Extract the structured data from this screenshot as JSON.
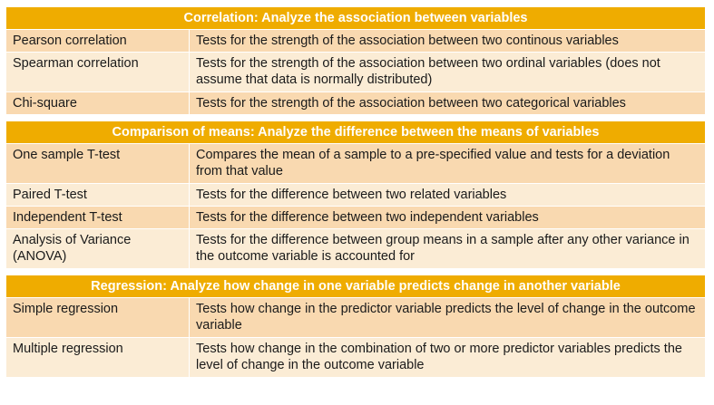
{
  "sections": [
    {
      "title": "Correlation: Analyze the association between variables",
      "rows": [
        {
          "test": "Pearson correlation",
          "description": "Tests for the strength of the association between two continous variables"
        },
        {
          "test": "Spearman correlation",
          "description": "Tests for the strength of the association between two ordinal variables (does not assume that data is normally distributed)"
        },
        {
          "test": "Chi-square",
          "description": "Tests for the strength of the association between two categorical variables"
        }
      ]
    },
    {
      "title": "Comparison of means: Analyze the difference between the means of variables",
      "rows": [
        {
          "test": "One sample T-test",
          "description": "Compares the mean of a sample to a pre-specified value and tests for a deviation from that value"
        },
        {
          "test": "Paired T-test",
          "description": "Tests for the difference between two related variables"
        },
        {
          "test": "Independent T-test",
          "description": "Tests for the difference between two independent variables"
        },
        {
          "test": "Analysis of Variance (ANOVA)",
          "description": "Tests for the difference between group means in a sample after any other variance in the outcome variable is accounted for"
        }
      ]
    },
    {
      "title": "Regression: Analyze how change in one variable predicts change in another variable",
      "rows": [
        {
          "test": "Simple regression",
          "description": "Tests how change in the predictor variable predicts the level of change in the outcome variable"
        },
        {
          "test": "Multiple regression",
          "description": "Tests how change in the combination of two or more predictor variables predicts the level of change in the outcome variable"
        }
      ]
    }
  ],
  "colors": {
    "header": "#efac00",
    "row_odd": "#f9d9b0",
    "row_even": "#fbecd5"
  }
}
